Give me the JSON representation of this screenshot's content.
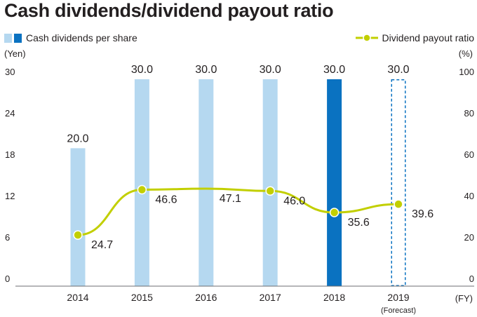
{
  "title": "Cash dividends/dividend payout ratio",
  "legend": {
    "bars_label": "Cash dividends per share",
    "line_label": "Dividend payout ratio"
  },
  "units": {
    "left": "(Yen)",
    "right": "(%)",
    "x": "(FY)"
  },
  "colors": {
    "bar_light": "#b5d8f0",
    "bar_dark": "#0a72c1",
    "forecast_outline": "#0a72c1",
    "line": "#c2cf00",
    "axis": "#6d6e71"
  },
  "chart_data": {
    "type": "bar+line",
    "categories": [
      "2014",
      "2015",
      "2016",
      "2017",
      "2018",
      "2019"
    ],
    "category_notes": [
      "",
      "",
      "",
      "",
      "",
      "(Forecast)"
    ],
    "bar_styles": [
      "light",
      "light",
      "light",
      "light",
      "dark",
      "forecast"
    ],
    "series": [
      {
        "name": "Cash dividends per share",
        "type": "bar",
        "axis": "left",
        "values": [
          20.0,
          30.0,
          30.0,
          30.0,
          30.0,
          30.0
        ],
        "labels": [
          "20.0",
          "30.0",
          "30.0",
          "30.0",
          "30.0",
          "30.0"
        ]
      },
      {
        "name": "Dividend payout ratio",
        "type": "line",
        "axis": "right",
        "values": [
          24.7,
          46.6,
          47.1,
          46.0,
          35.6,
          39.6
        ],
        "labels": [
          "24.7",
          "46.6",
          "47.1",
          "46.0",
          "35.6",
          "39.6"
        ],
        "markers": [
          true,
          true,
          false,
          true,
          true,
          true
        ]
      }
    ],
    "y_left": {
      "ylim": [
        0,
        30
      ],
      "ticks": [
        "0",
        "6",
        "12",
        "18",
        "24",
        "30"
      ]
    },
    "y_right": {
      "ylim": [
        0,
        100
      ],
      "ticks": [
        "0",
        "20",
        "40",
        "60",
        "80",
        "100"
      ]
    },
    "grid": false
  }
}
